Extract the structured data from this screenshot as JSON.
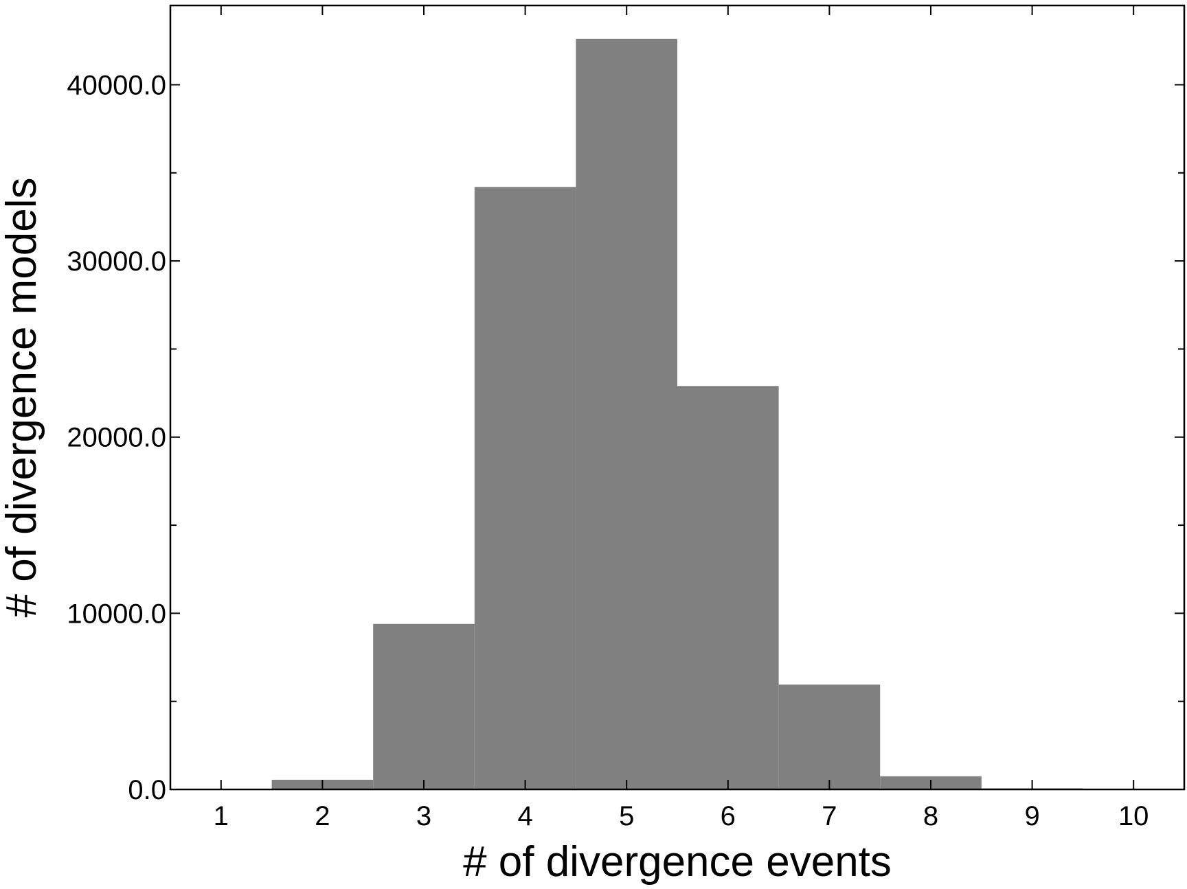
{
  "chart_data": {
    "type": "bar",
    "xlabel": "# of divergence events",
    "ylabel": "# of divergence models",
    "xlim": [
      0.5,
      10.5
    ],
    "ylim": [
      0,
      44500
    ],
    "x_ticks": [
      1,
      2,
      3,
      4,
      5,
      6,
      7,
      8,
      9,
      10
    ],
    "x_tick_labels": [
      "1",
      "2",
      "3",
      "4",
      "5",
      "6",
      "7",
      "8",
      "9",
      "10"
    ],
    "y_ticks": [
      0,
      10000,
      20000,
      30000,
      40000
    ],
    "y_tick_labels": [
      "0.0",
      "10000.0",
      "20000.0",
      "30000.0",
      "40000.0"
    ],
    "y_minor_ticks": [
      5000,
      15000,
      25000,
      35000
    ],
    "bin_width": 1,
    "categories": [
      2,
      3,
      4,
      5,
      6,
      7,
      8,
      9
    ],
    "values": [
      550,
      9400,
      34200,
      42600,
      22900,
      5950,
      750,
      60
    ],
    "bar_color": "#808080",
    "grid": false,
    "legend": false
  }
}
